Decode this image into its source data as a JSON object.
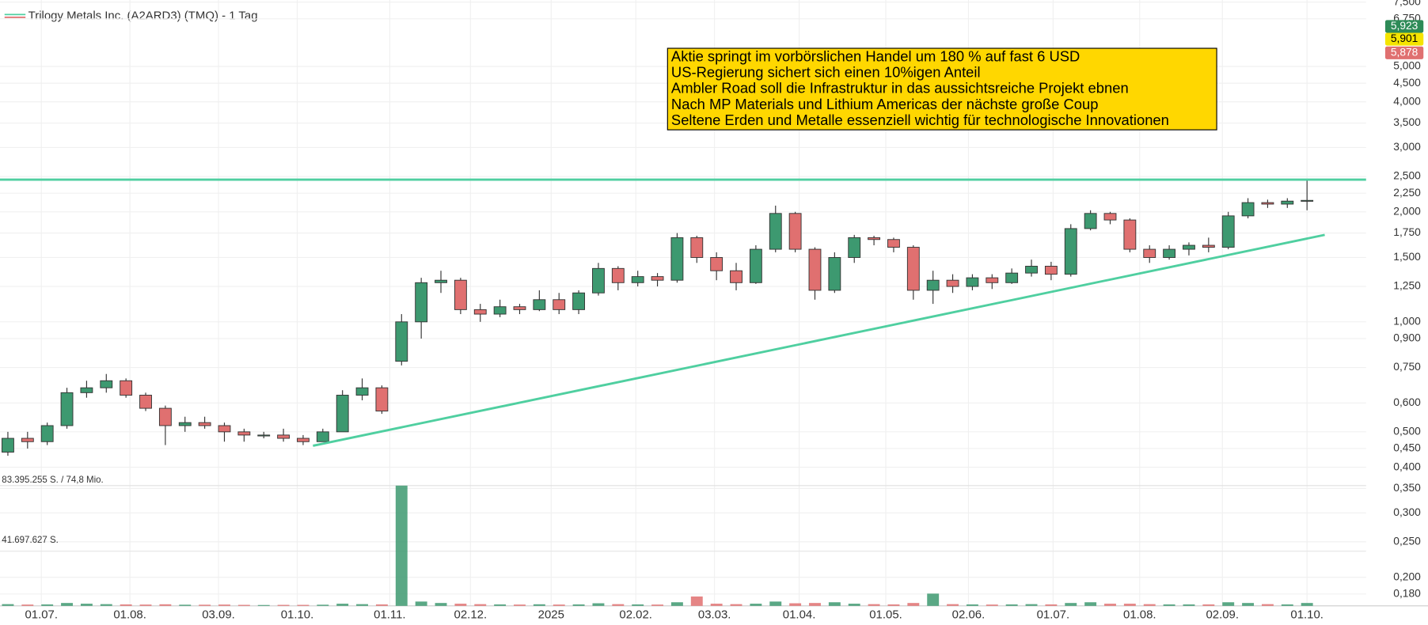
{
  "chart_data": {
    "type": "candlestick",
    "legend": "Trilogy Metals Inc. (A2ARD3) (TMQ) - 1 Tag",
    "up_color": "#3d9970",
    "down_color": "#e07070",
    "log_scale": true,
    "grid": true,
    "ylim": [
      0.167,
      7.6
    ],
    "yticks": [
      {
        "value": 7.5,
        "label": "7,500"
      },
      {
        "value": 6.75,
        "label": "6,750"
      },
      {
        "value": 5.0,
        "label": "5,000"
      },
      {
        "value": 4.5,
        "label": "4,500"
      },
      {
        "value": 4.0,
        "label": "4,000"
      },
      {
        "value": 3.5,
        "label": "3,500"
      },
      {
        "value": 3.0,
        "label": "3,000"
      },
      {
        "value": 2.5,
        "label": "2,500"
      },
      {
        "value": 2.25,
        "label": "2,250"
      },
      {
        "value": 2.0,
        "label": "2,000"
      },
      {
        "value": 1.75,
        "label": "1,750"
      },
      {
        "value": 1.5,
        "label": "1,500"
      },
      {
        "value": 1.25,
        "label": "1,250"
      },
      {
        "value": 1.0,
        "label": "1,000"
      },
      {
        "value": 0.9,
        "label": "0,900"
      },
      {
        "value": 0.75,
        "label": "0,750"
      },
      {
        "value": 0.6,
        "label": "0,600"
      },
      {
        "value": 0.5,
        "label": "0,500"
      },
      {
        "value": 0.45,
        "label": "0,450"
      },
      {
        "value": 0.4,
        "label": "0,400"
      },
      {
        "value": 0.35,
        "label": "0,350"
      },
      {
        "value": 0.3,
        "label": "0,300"
      },
      {
        "value": 0.25,
        "label": "0,250"
      },
      {
        "value": 0.2,
        "label": "0,200"
      },
      {
        "value": 0.18,
        "label": "0,180"
      }
    ],
    "xlim": [
      -0.4,
      69
    ],
    "xticks": [
      {
        "value": 1.7,
        "label": "01.07."
      },
      {
        "value": 6.2,
        "label": "01.08."
      },
      {
        "value": 10.7,
        "label": "03.09."
      },
      {
        "value": 14.7,
        "label": "01.10."
      },
      {
        "value": 19.4,
        "label": "01.11."
      },
      {
        "value": 23.5,
        "label": "02.12."
      },
      {
        "value": 27.6,
        "label": "2025"
      },
      {
        "value": 31.9,
        "label": "02.02."
      },
      {
        "value": 35.9,
        "label": "03.03."
      },
      {
        "value": 40.2,
        "label": "01.04."
      },
      {
        "value": 44.6,
        "label": "01.05."
      },
      {
        "value": 48.8,
        "label": "02.06."
      },
      {
        "value": 53.1,
        "label": "01.07."
      },
      {
        "value": 57.5,
        "label": "01.08."
      },
      {
        "value": 61.7,
        "label": "02.09."
      },
      {
        "value": 66,
        "label": "01.10."
      }
    ],
    "open": [
      0.44,
      0.48,
      0.47,
      0.52,
      0.64,
      0.66,
      0.69,
      0.63,
      0.58,
      0.52,
      0.53,
      0.52,
      0.5,
      0.49,
      0.49,
      0.48,
      0.47,
      0.5,
      0.63,
      0.66,
      0.78,
      1.0,
      1.28,
      1.3,
      1.08,
      1.05,
      1.1,
      1.08,
      1.15,
      1.08,
      1.2,
      1.4,
      1.28,
      1.33,
      1.3,
      1.7,
      1.5,
      1.38,
      1.28,
      1.58,
      1.98,
      1.58,
      1.22,
      1.5,
      1.7,
      1.68,
      1.6,
      1.22,
      1.3,
      1.25,
      1.32,
      1.28,
      1.36,
      1.42,
      1.35,
      1.8,
      1.98,
      1.9,
      1.58,
      1.5,
      1.58,
      1.62,
      1.6,
      1.95,
      2.12,
      2.1,
      2.14
    ],
    "high": [
      0.5,
      0.5,
      0.53,
      0.66,
      0.69,
      0.72,
      0.7,
      0.64,
      0.59,
      0.55,
      0.55,
      0.53,
      0.51,
      0.5,
      0.51,
      0.49,
      0.51,
      0.65,
      0.7,
      0.67,
      1.05,
      1.32,
      1.38,
      1.32,
      1.12,
      1.15,
      1.12,
      1.22,
      1.2,
      1.22,
      1.45,
      1.42,
      1.38,
      1.36,
      1.75,
      1.72,
      1.55,
      1.45,
      1.62,
      2.08,
      2.0,
      1.6,
      1.55,
      1.73,
      1.72,
      1.7,
      1.62,
      1.38,
      1.35,
      1.35,
      1.35,
      1.4,
      1.48,
      1.46,
      1.85,
      2.02,
      2.0,
      1.92,
      1.62,
      1.62,
      1.65,
      1.7,
      2.0,
      2.18,
      2.16,
      2.18,
      2.45
    ],
    "low": [
      0.43,
      0.45,
      0.46,
      0.51,
      0.62,
      0.64,
      0.62,
      0.57,
      0.46,
      0.5,
      0.51,
      0.47,
      0.47,
      0.48,
      0.47,
      0.46,
      0.47,
      0.5,
      0.61,
      0.56,
      0.76,
      0.9,
      1.2,
      1.05,
      1.0,
      1.03,
      1.05,
      1.07,
      1.05,
      1.05,
      1.18,
      1.22,
      1.25,
      1.25,
      1.28,
      1.45,
      1.3,
      1.22,
      1.27,
      1.55,
      1.55,
      1.15,
      1.2,
      1.45,
      1.62,
      1.55,
      1.15,
      1.12,
      1.2,
      1.22,
      1.23,
      1.27,
      1.33,
      1.3,
      1.33,
      1.78,
      1.85,
      1.55,
      1.45,
      1.48,
      1.52,
      1.55,
      1.58,
      1.92,
      2.05,
      2.05,
      2.02
    ],
    "close": [
      0.48,
      0.47,
      0.52,
      0.64,
      0.66,
      0.69,
      0.63,
      0.58,
      0.52,
      0.53,
      0.52,
      0.5,
      0.49,
      0.49,
      0.48,
      0.47,
      0.5,
      0.63,
      0.66,
      0.57,
      1.0,
      1.28,
      1.3,
      1.08,
      1.05,
      1.1,
      1.08,
      1.15,
      1.08,
      1.2,
      1.4,
      1.28,
      1.33,
      1.3,
      1.7,
      1.5,
      1.38,
      1.28,
      1.58,
      1.98,
      1.58,
      1.22,
      1.5,
      1.7,
      1.68,
      1.6,
      1.22,
      1.3,
      1.25,
      1.32,
      1.28,
      1.36,
      1.42,
      1.35,
      1.8,
      1.98,
      1.9,
      1.58,
      1.5,
      1.58,
      1.62,
      1.6,
      1.95,
      2.12,
      2.1,
      2.14,
      2.15
    ],
    "volume": [
      1200000,
      900000,
      1000000,
      2000000,
      1500000,
      1200000,
      1000000,
      900000,
      1100000,
      800000,
      800000,
      900000,
      700000,
      600000,
      700000,
      700000,
      800000,
      1500000,
      1200000,
      1000000,
      83395255,
      3000000,
      2000000,
      1500000,
      1200000,
      1000000,
      900000,
      1100000,
      900000,
      1000000,
      1800000,
      1200000,
      1000000,
      900000,
      2500000,
      6500000,
      1500000,
      1200000,
      1500000,
      3000000,
      1800000,
      2000000,
      2500000,
      1500000,
      1200000,
      1000000,
      2000000,
      8500000,
      1200000,
      1000000,
      900000,
      1000000,
      1200000,
      1000000,
      2000000,
      2500000,
      1500000,
      1500000,
      1200000,
      1000000,
      1000000,
      1000000,
      2500000,
      2000000,
      1200000,
      1000000,
      2000000
    ],
    "vlim": [
      0,
      83395255
    ],
    "vticks": [
      {
        "value": 83395255,
        "label": "83.395.255 S. / 74,8 Mio."
      },
      {
        "value": 41697627,
        "label": "41.697.627 S."
      }
    ],
    "hline": {
      "value": 2.45,
      "color": "#4fcfa0"
    },
    "trendline": {
      "x": [
        15.5,
        66.9
      ],
      "y": [
        0.458,
        1.73
      ],
      "color": "#4fcfa0"
    },
    "price_tags": [
      {
        "value": 5.923,
        "label": "5,923",
        "color": "#2e8b57",
        "text_color": "#ffffff"
      },
      {
        "value": 5.901,
        "label": "5,901",
        "color": "#f5e400",
        "text_color": "#000000"
      },
      {
        "value": 5.878,
        "label": "5,878",
        "color": "#e07070",
        "text_color": "#ffffff"
      }
    ],
    "annotation": {
      "lines": [
        "Aktie springt im vorbörslichen Handel um 180 % auf fast 6 USD",
        "US-Regierung sichert sich einen 10%igen Anteil",
        "Ambler Road soll die Infrastruktur in das aussichtsreiche Projekt ebnen",
        "Nach MP Materials und Lithium Americas der nächste große Coup",
        "Seltene Erden und Metalle essenziell wichtig für technologische Innovationen"
      ]
    }
  }
}
